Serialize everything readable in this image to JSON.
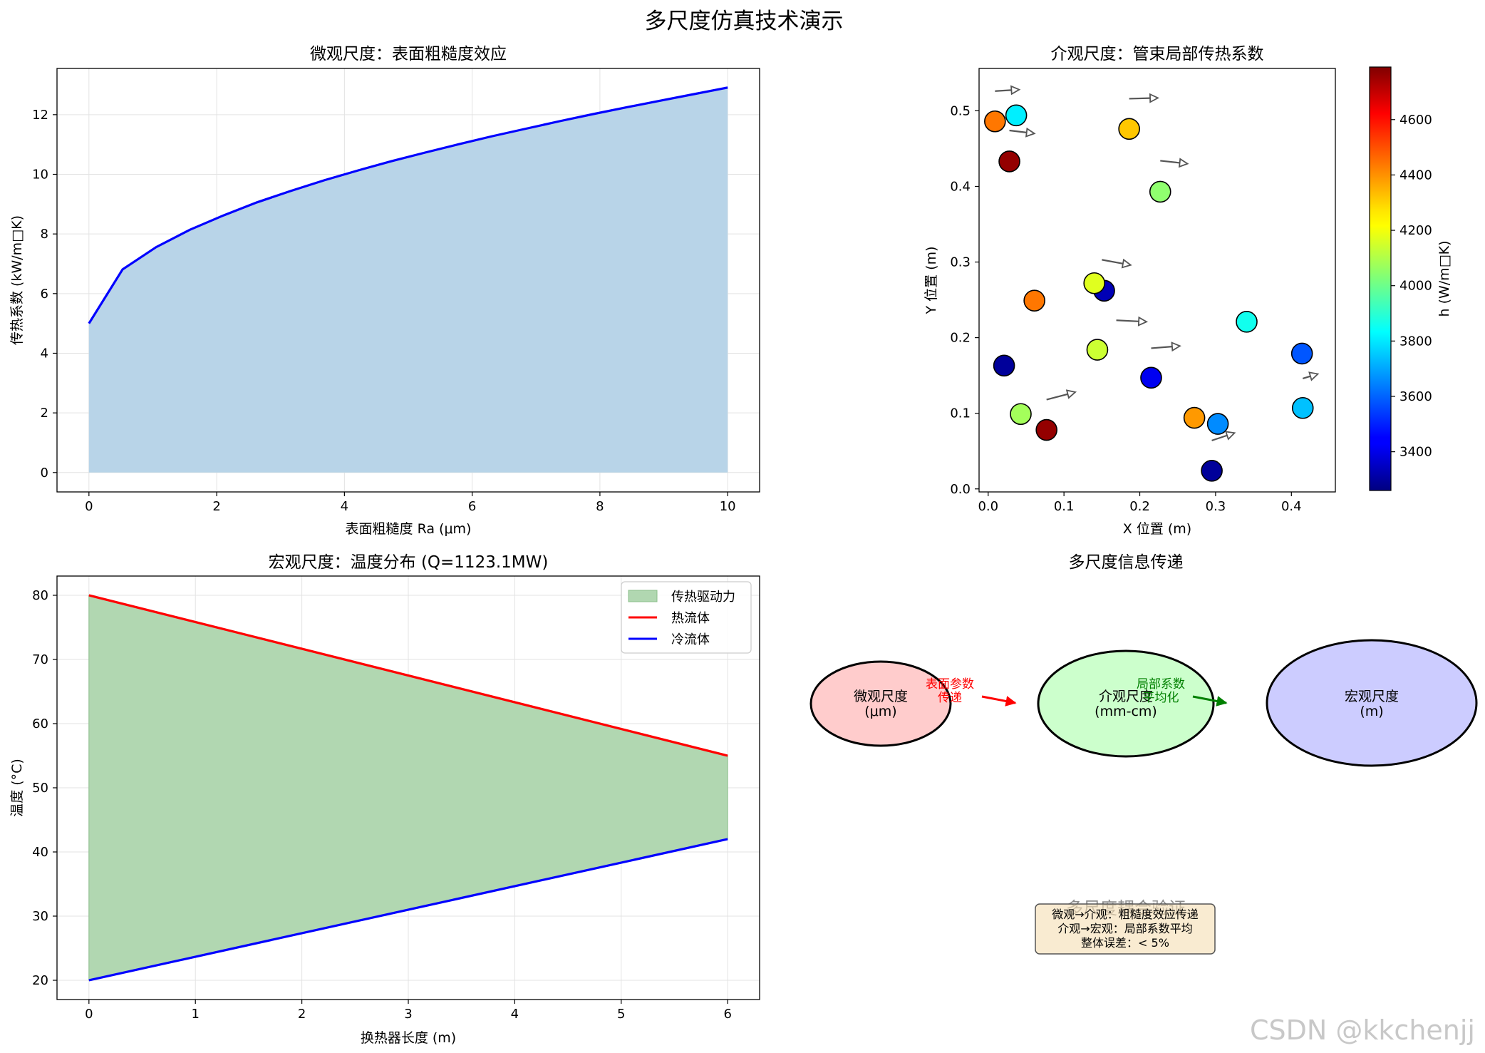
{
  "suptitle": "多尺度仿真技术演示",
  "watermark": "CSDN @kkchenjj",
  "chart_data": [
    {
      "type": "area",
      "title": "微观尺度：表面粗糙度效应",
      "xlabel": "表面粗糙度 Ra (μm)",
      "ylabel": "传热系数 (kW/m□K)",
      "xlim": [
        -0.5,
        10.5
      ],
      "ylim": [
        -0.65,
        13.55
      ],
      "xticks": [
        0,
        2,
        4,
        6,
        8,
        10
      ],
      "yticks": [
        0,
        2,
        4,
        6,
        8,
        10,
        12
      ],
      "grid": true,
      "line_color": "#0000ff",
      "fill_color": "#b8d4e8",
      "series": [
        {
          "x": [
            0,
            0.526,
            1.053,
            1.579,
            2.105,
            2.632,
            3.158,
            3.684,
            4.211,
            4.737,
            5.263,
            5.789,
            6.316,
            6.842,
            7.368,
            7.895,
            8.421,
            8.947,
            9.474,
            10
          ],
          "values": [
            5.0,
            6.81,
            7.56,
            8.14,
            8.62,
            9.06,
            9.44,
            9.8,
            10.13,
            10.44,
            10.73,
            11.01,
            11.28,
            11.53,
            11.78,
            12.02,
            12.25,
            12.47,
            12.69,
            12.91
          ]
        }
      ]
    },
    {
      "type": "scatter",
      "title": "介观尺度：管束局部传热系数",
      "xlabel": "X 位置 (m)",
      "ylabel": "Y 位置 (m)",
      "xlim": [
        -0.012,
        0.458
      ],
      "ylim": [
        -0.004,
        0.556
      ],
      "xticks": [
        0.0,
        0.1,
        0.2,
        0.3,
        0.4
      ],
      "xtick_labels": [
        "0.0",
        "0.1",
        "0.2",
        "0.3",
        "0.4"
      ],
      "yticks": [
        0.0,
        0.1,
        0.2,
        0.3,
        0.4,
        0.5
      ],
      "ytick_labels": [
        "0.0",
        "0.1",
        "0.2",
        "0.3",
        "0.4",
        "0.5"
      ],
      "colorbar": {
        "label": "h (W/m□K)",
        "range": [
          3260,
          4790
        ],
        "ticks": [
          3400,
          3600,
          3800,
          4000,
          4200,
          4400,
          4600
        ],
        "colormap": "jet"
      },
      "points": [
        {
          "x": 0.009,
          "y": 0.486,
          "h": 4420
        },
        {
          "x": 0.037,
          "y": 0.494,
          "h": 3810
        },
        {
          "x": 0.028,
          "y": 0.433,
          "h": 4760
        },
        {
          "x": 0.186,
          "y": 0.476,
          "h": 4300
        },
        {
          "x": 0.227,
          "y": 0.393,
          "h": 4050
        },
        {
          "x": 0.061,
          "y": 0.249,
          "h": 4420
        },
        {
          "x": 0.153,
          "y": 0.262,
          "h": 3340
        },
        {
          "x": 0.14,
          "y": 0.272,
          "h": 4170
        },
        {
          "x": 0.144,
          "y": 0.184,
          "h": 4140
        },
        {
          "x": 0.341,
          "y": 0.221,
          "h": 3860
        },
        {
          "x": 0.414,
          "y": 0.179,
          "h": 3580
        },
        {
          "x": 0.021,
          "y": 0.163,
          "h": 3300
        },
        {
          "x": 0.215,
          "y": 0.147,
          "h": 3430
        },
        {
          "x": 0.043,
          "y": 0.099,
          "h": 4080
        },
        {
          "x": 0.077,
          "y": 0.078,
          "h": 4760
        },
        {
          "x": 0.272,
          "y": 0.094,
          "h": 4370
        },
        {
          "x": 0.303,
          "y": 0.086,
          "h": 3660
        },
        {
          "x": 0.415,
          "y": 0.107,
          "h": 3740
        },
        {
          "x": 0.295,
          "y": 0.024,
          "h": 3300
        }
      ],
      "arrows": [
        {
          "x": 0.009,
          "y": 0.526,
          "dx": 0.032,
          "dy": 0.002
        },
        {
          "x": 0.028,
          "y": 0.474,
          "dx": 0.033,
          "dy": -0.004
        },
        {
          "x": 0.186,
          "y": 0.516,
          "dx": 0.038,
          "dy": 0.001
        },
        {
          "x": 0.227,
          "y": 0.434,
          "dx": 0.036,
          "dy": -0.004
        },
        {
          "x": 0.15,
          "y": 0.303,
          "dx": 0.038,
          "dy": -0.007
        },
        {
          "x": 0.169,
          "y": 0.223,
          "dx": 0.04,
          "dy": -0.002
        },
        {
          "x": 0.215,
          "y": 0.186,
          "dx": 0.038,
          "dy": 0.003
        },
        {
          "x": 0.077,
          "y": 0.118,
          "dx": 0.038,
          "dy": 0.01
        },
        {
          "x": 0.295,
          "y": 0.064,
          "dx": 0.03,
          "dy": 0.01
        },
        {
          "x": 0.415,
          "y": 0.146,
          "dx": 0.02,
          "dy": 0.006
        }
      ]
    },
    {
      "type": "line",
      "title": "宏观尺度：温度分布 (Q=1123.1MW)",
      "xlabel": "换热器长度 (m)",
      "ylabel": "温度 (°C)",
      "xlim": [
        -0.3,
        6.3
      ],
      "ylim": [
        17,
        83
      ],
      "xticks": [
        0,
        1,
        2,
        3,
        4,
        5,
        6
      ],
      "yticks": [
        20,
        30,
        40,
        50,
        60,
        70,
        80
      ],
      "grid": true,
      "legend": "upper right",
      "x": [
        0,
        6
      ],
      "series": [
        {
          "name": "热流体",
          "values": [
            80,
            55
          ],
          "color": "#ff0000"
        },
        {
          "name": "冷流体",
          "values": [
            20,
            42
          ],
          "color": "#0000ff"
        }
      ],
      "fill": {
        "name": "传热驱动力",
        "between": [
          "热流体",
          "冷流体"
        ],
        "color": "#b1d7b1"
      }
    }
  ],
  "diagram": {
    "title": "多尺度信息传递",
    "nodes": [
      {
        "line1": "微观尺度",
        "line2": "(μm)",
        "fill": "#ffcccc"
      },
      {
        "line1": "介观尺度",
        "line2": "(mm-cm)",
        "fill": "#ccffcc"
      },
      {
        "line1": "宏观尺度",
        "line2": "(m)",
        "fill": "#ccccff"
      }
    ],
    "arrows": [
      {
        "line1": "表面参数",
        "line2": "传递",
        "color": "#ff0000"
      },
      {
        "line1": "局部系数",
        "line2": "平均化",
        "color": "#008000"
      }
    ],
    "verification": {
      "title": "多尺度耦合验证",
      "lines": [
        "微观→介观：粗糙度效应传递",
        "介观→宏观：局部系数平均",
        "整体误差：< 5%"
      ]
    }
  }
}
